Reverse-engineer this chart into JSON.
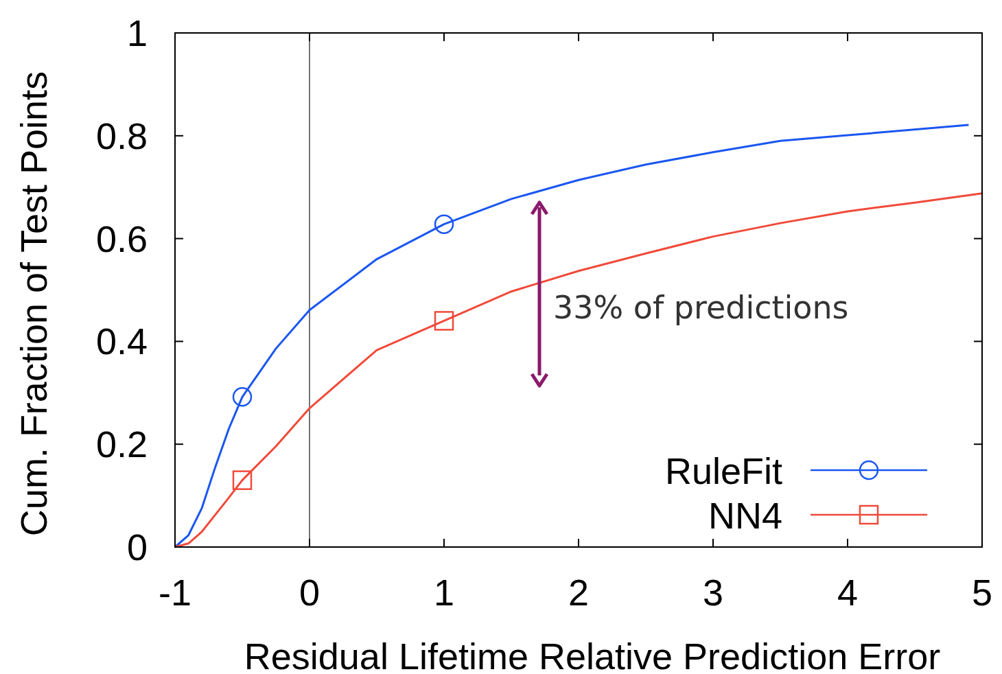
{
  "chart_data": {
    "type": "line",
    "xlabel": "Residual Lifetime Relative Prediction Error",
    "ylabel": "Cum. Fraction of Test Points",
    "xlim": [
      -1,
      5
    ],
    "xticks": [
      -1,
      0,
      1,
      2,
      3,
      4,
      5
    ],
    "ylim": [
      0,
      1
    ],
    "yticks": [
      0,
      0.2,
      0.4,
      0.6,
      0.8,
      1
    ],
    "grid": false,
    "legend": "bottom right",
    "series": [
      {
        "name": "RuleFit",
        "type": "scatter",
        "color": "#1a56f0",
        "marker": "circle",
        "x": [
          -0.5,
          1
        ],
        "values": [
          0.292,
          0.628
        ]
      },
      {
        "name": "NN4",
        "type": "scatter",
        "color": "#f04a3a",
        "marker": "square",
        "x": [
          -0.5,
          1
        ],
        "values": [
          0.13,
          0.44
        ]
      },
      {
        "color": "#1a56f0",
        "x": [
          -1,
          -0.9,
          -0.8,
          -0.7,
          -0.6,
          -0.5,
          -0.25,
          0,
          0.5,
          1,
          1.5,
          2,
          2.5,
          3,
          3.5,
          4,
          4.9
        ],
        "values": [
          0,
          0.023,
          0.076,
          0.156,
          0.23,
          0.292,
          0.386,
          0.461,
          0.56,
          0.628,
          0.677,
          0.714,
          0.744,
          0.768,
          0.79,
          0.801,
          0.821
        ]
      },
      {
        "color": "#f04a3a",
        "x": [
          -1,
          -0.9,
          -0.8,
          -0.7,
          -0.6,
          -0.5,
          -0.25,
          0,
          0.5,
          1,
          1.5,
          2,
          2.5,
          3,
          3.5,
          4,
          4.5,
          5
        ],
        "values": [
          0,
          0.007,
          0.03,
          0.063,
          0.096,
          0.13,
          0.196,
          0.27,
          0.383,
          0.44,
          0.497,
          0.537,
          0.571,
          0.604,
          0.63,
          0.653,
          0.67,
          0.688
        ]
      }
    ],
    "ref_lines": [
      {
        "axis": "x",
        "value": 0,
        "color": "#444444"
      }
    ],
    "annotations": [
      "33% of predictions"
    ]
  }
}
